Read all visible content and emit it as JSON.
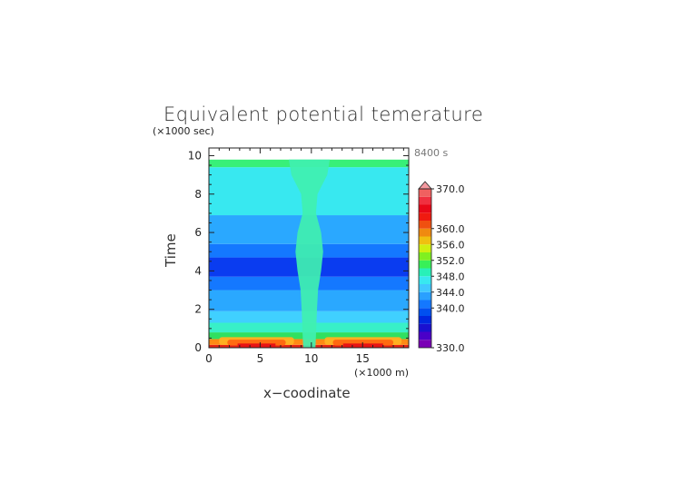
{
  "chart_data": {
    "type": "heatmap",
    "title": "Equivalent potential temerature",
    "time_label": "8400 s",
    "xlabel": "x−coodinate",
    "ylabel": "Time",
    "x_unit": "(×1000 m)",
    "y_unit": "(×1000 sec)",
    "xlim": [
      0,
      19.5
    ],
    "ylim": [
      0,
      10.4
    ],
    "x_ticks": [
      "0",
      "5",
      "10",
      "15"
    ],
    "y_ticks": [
      "0",
      "2",
      "4",
      "6",
      "8",
      "10"
    ],
    "colorbar": {
      "min": 330,
      "max": 370,
      "labels": [
        "370.0",
        "360.0",
        "356.0",
        "352.0",
        "348.0",
        "344.0",
        "340.0",
        "330.0"
      ],
      "colors": [
        "#7a00b5",
        "#4a00c8",
        "#1a10d0",
        "#0028e0",
        "#0050f0",
        "#1478ff",
        "#2aa0ff",
        "#40c8ff",
        "#38e8f0",
        "#28f0b8",
        "#38f058",
        "#80f020",
        "#d0f010",
        "#f0c010",
        "#f08a10",
        "#f05010",
        "#f01a10",
        "#e80818",
        "#f03040",
        "#f06060"
      ],
      "extend_color": "#f49aa0"
    },
    "bands": [
      {
        "t0": 0.0,
        "t1": 0.15,
        "color": "#e82414"
      },
      {
        "t0": 0.15,
        "t1": 0.45,
        "color": "#ff8a14"
      },
      {
        "t0": 0.45,
        "t1": 0.8,
        "color": "#30e060"
      },
      {
        "t0": 0.8,
        "t1": 1.3,
        "color": "#38f0c8"
      },
      {
        "t0": 1.3,
        "t1": 1.9,
        "color": "#40d0ff"
      },
      {
        "t0": 1.9,
        "t1": 3.0,
        "color": "#2aa8ff"
      },
      {
        "t0": 3.0,
        "t1": 3.7,
        "color": "#1478ff"
      },
      {
        "t0": 3.7,
        "t1": 4.7,
        "color": "#0a3cf0"
      },
      {
        "t0": 4.7,
        "t1": 5.4,
        "color": "#1478ff"
      },
      {
        "t0": 5.4,
        "t1": 6.9,
        "color": "#2aa8ff"
      },
      {
        "t0": 6.9,
        "t1": 9.4,
        "color": "#38e8f0"
      },
      {
        "t0": 9.4,
        "t1": 9.8,
        "color": "#38f078"
      },
      {
        "t0": 9.8,
        "t1": 10.4,
        "color": "#ffffff"
      }
    ],
    "center_plume": {
      "x_center": 9.8,
      "color": "#40f0b0",
      "widths": [
        [
          0,
          1.2
        ],
        [
          2,
          1.5
        ],
        [
          3,
          1.7
        ],
        [
          4,
          2.3
        ],
        [
          5,
          2.7
        ],
        [
          6,
          2.3
        ],
        [
          7,
          1.3
        ],
        [
          8,
          1.6
        ],
        [
          9,
          3.5
        ],
        [
          9.8,
          4.0
        ]
      ]
    }
  }
}
